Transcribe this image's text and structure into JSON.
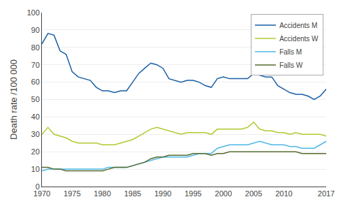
{
  "chart_data": {
    "type": "line",
    "ylabel": "Death rate /100 000",
    "x": [
      1970,
      1971,
      1972,
      1973,
      1974,
      1975,
      1976,
      1977,
      1978,
      1979,
      1980,
      1981,
      1982,
      1983,
      1984,
      1985,
      1986,
      1987,
      1988,
      1989,
      1990,
      1991,
      1992,
      1993,
      1994,
      1995,
      1996,
      1997,
      1998,
      1999,
      2000,
      2001,
      2002,
      2003,
      2004,
      2005,
      2006,
      2007,
      2008,
      2009,
      2010,
      2011,
      2012,
      2013,
      2014,
      2015,
      2016,
      2017
    ],
    "series": [
      {
        "name": "Accidents M",
        "color": "#1a5fa6",
        "values": [
          82,
          88,
          87,
          78,
          76,
          66,
          63,
          62,
          61,
          57,
          55,
          55,
          54,
          55,
          55,
          60,
          65,
          68,
          71,
          70,
          68,
          62,
          61,
          60,
          61,
          61,
          60,
          58,
          57,
          62,
          63,
          62,
          62,
          62,
          62,
          65,
          64,
          63,
          63,
          58,
          56,
          54,
          53,
          53,
          52,
          50,
          52,
          56
        ]
      },
      {
        "name": "Accidents W",
        "color": "#b5c832",
        "values": [
          30,
          34,
          30,
          29,
          28,
          26,
          25,
          25,
          25,
          25,
          24,
          24,
          24,
          25,
          26,
          27,
          29,
          31,
          33,
          34,
          33,
          32,
          31,
          30,
          31,
          31,
          31,
          31,
          30,
          33,
          33,
          33,
          33,
          33,
          34,
          37,
          33,
          32,
          32,
          31,
          31,
          30,
          31,
          30,
          30,
          30,
          30,
          29
        ]
      },
      {
        "name": "Falls M",
        "color": "#4db8e8",
        "values": [
          9,
          10,
          10,
          10,
          10,
          10,
          10,
          10,
          10,
          10,
          10,
          11,
          11,
          11,
          11,
          12,
          13,
          14,
          15,
          16,
          17,
          17,
          17,
          17,
          17,
          18,
          19,
          19,
          19,
          22,
          23,
          24,
          24,
          24,
          24,
          25,
          26,
          25,
          24,
          24,
          24,
          23,
          23,
          22,
          22,
          22,
          24,
          26
        ]
      },
      {
        "name": "Falls W",
        "color": "#556b2f",
        "values": [
          11,
          11,
          10,
          10,
          9,
          9,
          9,
          9,
          9,
          9,
          9,
          10,
          11,
          11,
          11,
          12,
          13,
          14,
          16,
          17,
          17,
          18,
          18,
          18,
          18,
          19,
          19,
          19,
          18,
          19,
          19,
          20,
          20,
          20,
          20,
          20,
          20,
          20,
          20,
          20,
          20,
          20,
          20,
          19,
          19,
          19,
          19,
          19
        ]
      }
    ],
    "xlim": [
      1970,
      2017
    ],
    "ylim": [
      0,
      100
    ],
    "xticks": [
      1970,
      1975,
      1980,
      1985,
      1990,
      1995,
      2000,
      2005,
      2010,
      2017
    ],
    "yticks": [
      0,
      10,
      20,
      30,
      40,
      50,
      60,
      70,
      80,
      90,
      100
    ],
    "grid": "y",
    "legend": "upper right"
  }
}
